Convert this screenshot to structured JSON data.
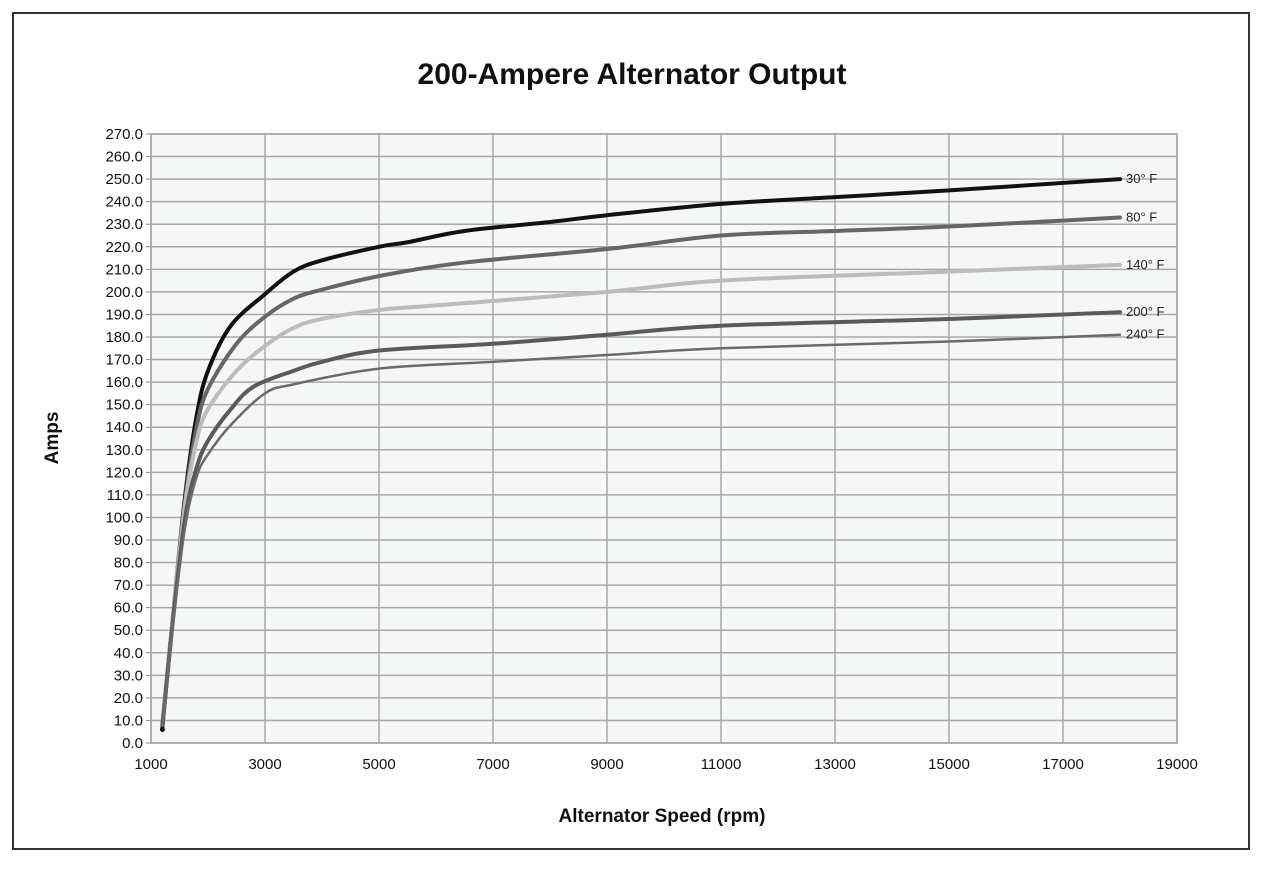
{
  "chart_data": {
    "type": "line",
    "title": "200-Ampere Alternator Output",
    "xlabel": "Alternator Speed (rpm)",
    "ylabel": "Amps",
    "xlim": [
      1000,
      19000
    ],
    "ylim": [
      0,
      270
    ],
    "xticks": [
      1000,
      3000,
      5000,
      7000,
      9000,
      11000,
      13000,
      15000,
      17000,
      19000
    ],
    "yticks": [
      0,
      10,
      20,
      30,
      40,
      50,
      60,
      70,
      80,
      90,
      100,
      110,
      120,
      130,
      140,
      150,
      160,
      170,
      180,
      190,
      200,
      210,
      220,
      230,
      240,
      250,
      260,
      270
    ],
    "grid": true,
    "legend": "inline labels at right end of each line",
    "series": [
      {
        "name": "30° F",
        "color": "#111111",
        "width": 4,
        "points": [
          [
            1200,
            7
          ],
          [
            1400,
            60
          ],
          [
            1600,
            110
          ],
          [
            1800,
            145
          ],
          [
            2000,
            165
          ],
          [
            2400,
            185
          ],
          [
            3000,
            199
          ],
          [
            3500,
            209
          ],
          [
            4000,
            214
          ],
          [
            5000,
            220
          ],
          [
            5500,
            222
          ],
          [
            6500,
            227
          ],
          [
            8000,
            231
          ],
          [
            9000,
            234
          ],
          [
            11000,
            239
          ],
          [
            13000,
            242
          ],
          [
            15000,
            245
          ],
          [
            18000,
            250
          ]
        ]
      },
      {
        "name": "80° F",
        "color": "#666666",
        "width": 4,
        "points": [
          [
            1200,
            8
          ],
          [
            1400,
            60
          ],
          [
            1600,
            108
          ],
          [
            1800,
            140
          ],
          [
            2000,
            157
          ],
          [
            2500,
            177
          ],
          [
            3000,
            189
          ],
          [
            3500,
            197
          ],
          [
            4000,
            201
          ],
          [
            5000,
            207
          ],
          [
            6500,
            213
          ],
          [
            9000,
            219
          ],
          [
            11000,
            225
          ],
          [
            13000,
            227
          ],
          [
            15000,
            229
          ],
          [
            18000,
            233
          ]
        ]
      },
      {
        "name": "140° F",
        "color": "#bcbcbc",
        "width": 4,
        "points": [
          [
            1200,
            8
          ],
          [
            1400,
            60
          ],
          [
            1600,
            106
          ],
          [
            1800,
            134
          ],
          [
            2000,
            148
          ],
          [
            2500,
            165
          ],
          [
            3000,
            176
          ],
          [
            3500,
            184
          ],
          [
            4000,
            188
          ],
          [
            5000,
            192
          ],
          [
            6000,
            194
          ],
          [
            9000,
            200
          ],
          [
            11000,
            205
          ],
          [
            15000,
            209
          ],
          [
            18000,
            212
          ]
        ]
      },
      {
        "name": "200° F",
        "color": "#5a5a5a",
        "width": 4,
        "points": [
          [
            1200,
            8
          ],
          [
            1400,
            58
          ],
          [
            1600,
            100
          ],
          [
            1800,
            122
          ],
          [
            2000,
            134
          ],
          [
            2400,
            148
          ],
          [
            2800,
            158
          ],
          [
            3500,
            165
          ],
          [
            4000,
            169
          ],
          [
            5000,
            174
          ],
          [
            7000,
            177
          ],
          [
            9000,
            181
          ],
          [
            11000,
            185
          ],
          [
            15000,
            188
          ],
          [
            18000,
            191
          ]
        ]
      },
      {
        "name": "240° F",
        "color": "#6a6a6a",
        "width": 2.5,
        "points": [
          [
            1200,
            8
          ],
          [
            1400,
            56
          ],
          [
            1600,
            96
          ],
          [
            1800,
            118
          ],
          [
            2000,
            128
          ],
          [
            2400,
            141
          ],
          [
            3000,
            155
          ],
          [
            3500,
            159
          ],
          [
            5000,
            166
          ],
          [
            7000,
            169
          ],
          [
            9000,
            172
          ],
          [
            11000,
            175
          ],
          [
            15000,
            178
          ],
          [
            18000,
            181
          ]
        ]
      }
    ]
  }
}
